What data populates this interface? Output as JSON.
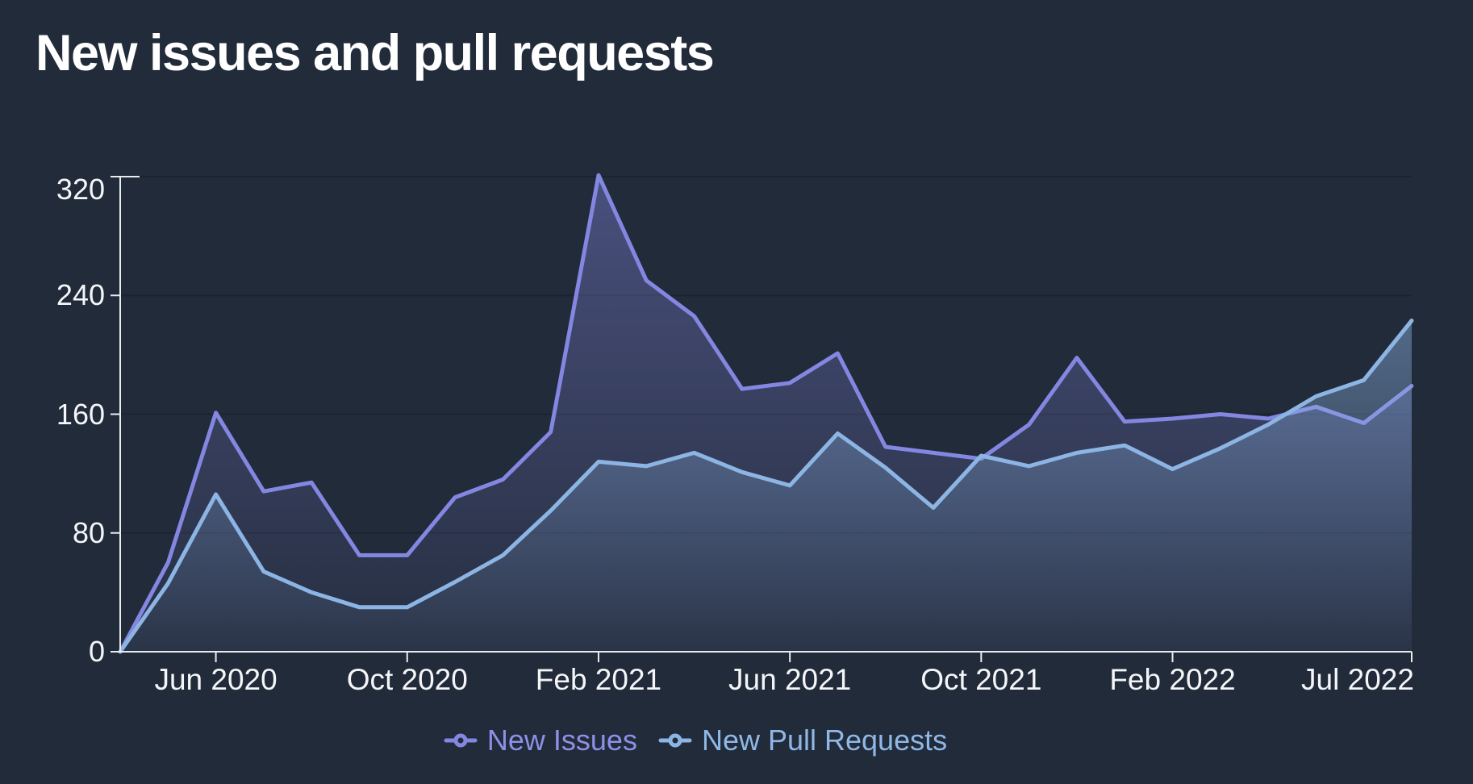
{
  "title": "New issues and pull requests",
  "colors": {
    "background": "#222B3A",
    "title_text": "#FFFFFF",
    "axis_label_text": "#F4F6F8",
    "axis_line": "#E9EBEE",
    "grid_line": "#1B2330",
    "new_issues": "#8487E1",
    "new_issues_legend_text": "#8E90E8",
    "new_pull_requests": "#8CB5E4",
    "new_pull_requests_legend_text": "#8FB8E6"
  },
  "y_axis": {
    "tick_labels": [
      "320",
      "240",
      "160",
      "80",
      "0"
    ],
    "max": 320
  },
  "x_axis": {
    "ticks": [
      {
        "label": "Jun 2020",
        "month_index": 2
      },
      {
        "label": "Oct 2020",
        "month_index": 6
      },
      {
        "label": "Feb 2021",
        "month_index": 10
      },
      {
        "label": "Jun 2021",
        "month_index": 14
      },
      {
        "label": "Oct 2021",
        "month_index": 18
      },
      {
        "label": "Feb 2022",
        "month_index": 22
      },
      {
        "label": "Jul 2022",
        "month_index": 27,
        "clamped_to_edge": true
      }
    ]
  },
  "legend": {
    "marker_icon": "line-with-ring-icon",
    "position": "bottom-center"
  },
  "chart_data": {
    "type": "area",
    "title": "New issues and pull requests",
    "xlabel": "",
    "ylabel": "",
    "ylim": [
      0,
      320
    ],
    "grid": "horizontal",
    "legend_position": "bottom",
    "x": [
      "Apr 2020",
      "May 2020",
      "Jun 2020",
      "Jul 2020",
      "Aug 2020",
      "Sep 2020",
      "Oct 2020",
      "Nov 2020",
      "Dec 2020",
      "Jan 2021",
      "Feb 2021",
      "Mar 2021",
      "Apr 2021",
      "May 2021",
      "Jun 2021",
      "Jul 2021",
      "Aug 2021",
      "Sep 2021",
      "Oct 2021",
      "Nov 2021",
      "Dec 2021",
      "Jan 2022",
      "Feb 2022",
      "Mar 2022",
      "Apr 2022",
      "May 2022",
      "Jun 2022",
      "Jul 2022"
    ],
    "series": [
      {
        "id": "new-issues",
        "name": "New Issues",
        "color": "#8487E1",
        "values": [
          0,
          60,
          161,
          108,
          114,
          65,
          65,
          104,
          116,
          148,
          321,
          250,
          226,
          177,
          181,
          201,
          138,
          134,
          130,
          153,
          198,
          155,
          157,
          160,
          157,
          165,
          154,
          179
        ]
      },
      {
        "id": "new-pull-requests",
        "name": "New Pull Requests",
        "color": "#8CB5E4",
        "values": [
          0,
          46,
          106,
          54,
          40,
          30,
          30,
          47,
          65,
          95,
          128,
          125,
          134,
          121,
          112,
          147,
          124,
          97,
          132,
          125,
          134,
          139,
          123,
          137,
          153,
          172,
          183,
          223
        ]
      }
    ]
  }
}
